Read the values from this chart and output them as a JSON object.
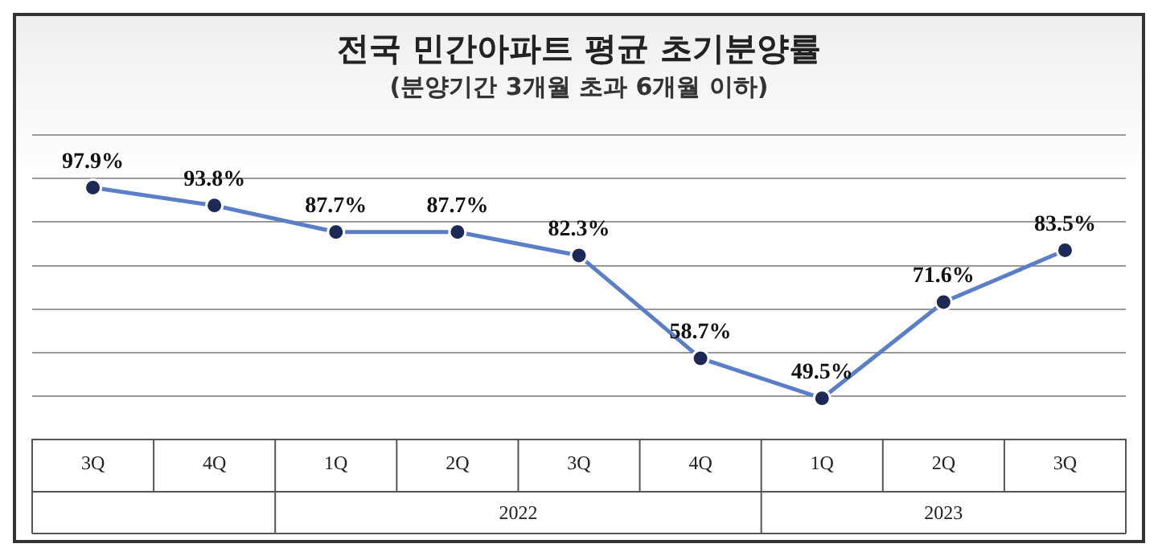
{
  "chart_data": {
    "type": "line",
    "title": "전국 민간아파트 평균 초기분양률",
    "subtitle": "(분양기간 3개월 초과 6개월 이하)",
    "categories": [
      "3Q",
      "4Q",
      "1Q",
      "2Q",
      "3Q",
      "4Q",
      "1Q",
      "2Q",
      "3Q"
    ],
    "series": [
      {
        "color": "#5b7fc7",
        "values": [
          97.9,
          93.8,
          87.7,
          87.7,
          82.3,
          58.7,
          49.5,
          71.6,
          83.5
        ],
        "value_labels": [
          "97.9%",
          "93.8%",
          "87.7%",
          "87.7%",
          "82.3%",
          "58.7%",
          "49.5%",
          "71.6%",
          "83.5%"
        ]
      }
    ],
    "annotations": [
      "2022",
      "2023"
    ],
    "marker": "circle",
    "grid": "y",
    "legend": false,
    "tick_labels": "x"
  }
}
